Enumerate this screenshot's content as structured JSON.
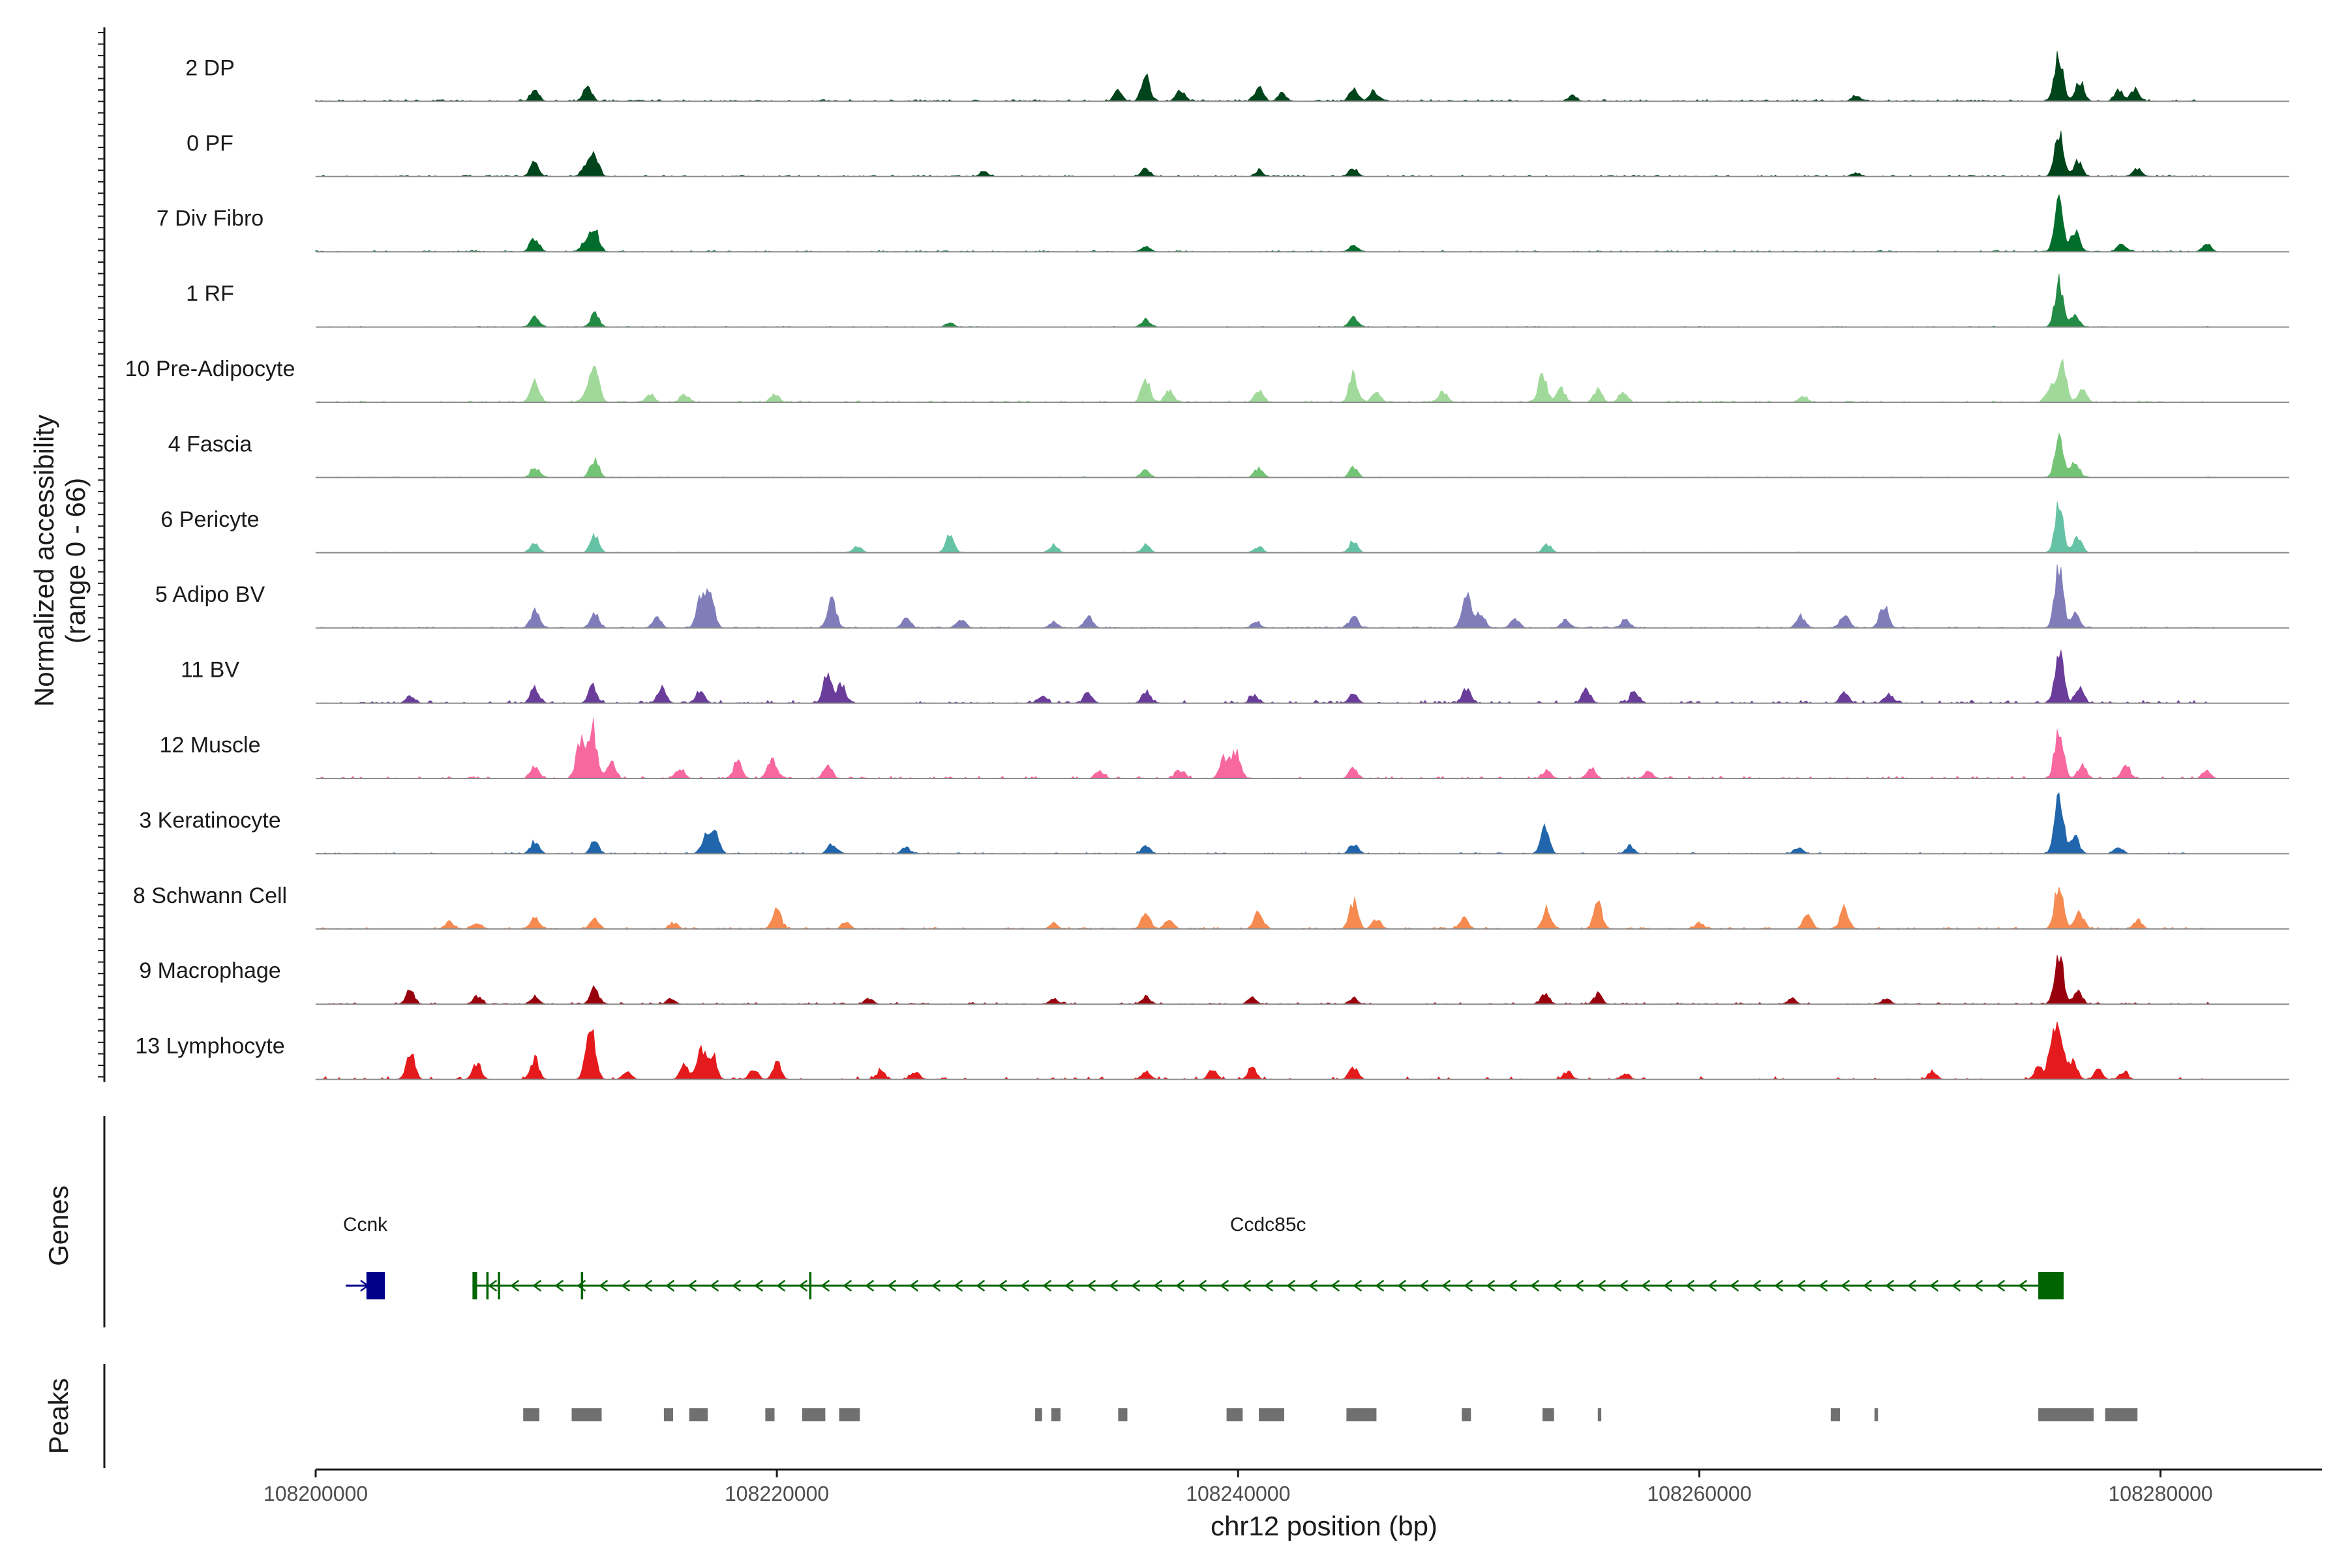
{
  "chart_data": {
    "type": "area",
    "chromosome": "chr12",
    "xlabel": "chr12 position (bp)",
    "ylabel": "Normalized accessibility",
    "ylabel_range": "(range 0 - 66)",
    "ylim": [
      0,
      66
    ],
    "xlim": [
      108200000,
      108287000
    ],
    "x_ticks": [
      108200000,
      108220000,
      108240000,
      108260000,
      108280000
    ],
    "x_tick_labels": [
      "108200000",
      "108220000",
      "108240000",
      "108260000",
      "108280000"
    ],
    "data_start": 108200000,
    "data_end": 108282500,
    "tracks": [
      {
        "name": "2 DP",
        "color": "#00441b",
        "noise": 2.0,
        "density": 0.9,
        "peaks": [
          [
            108209500,
            12
          ],
          [
            108211800,
            14
          ],
          [
            108234800,
            10
          ],
          [
            108236000,
            25
          ],
          [
            108237500,
            12
          ],
          [
            108240900,
            14
          ],
          [
            108241900,
            8
          ],
          [
            108245000,
            12
          ],
          [
            108245900,
            10
          ],
          [
            108254500,
            6
          ],
          [
            108266800,
            6
          ],
          [
            108275600,
            48
          ],
          [
            108276500,
            20
          ],
          [
            108278200,
            10
          ],
          [
            108278900,
            12
          ]
        ]
      },
      {
        "name": "0 PF",
        "color": "#00441b",
        "noise": 1.5,
        "density": 0.85,
        "peaks": [
          [
            108209500,
            14
          ],
          [
            108211700,
            10
          ],
          [
            108212100,
            22
          ],
          [
            108229000,
            5
          ],
          [
            108236000,
            8
          ],
          [
            108240900,
            6
          ],
          [
            108245000,
            8
          ],
          [
            108266800,
            4
          ],
          [
            108275600,
            48
          ],
          [
            108276400,
            16
          ],
          [
            108279000,
            8
          ]
        ]
      },
      {
        "name": "7 Div Fibro",
        "color": "#006d2c",
        "noise": 1.5,
        "density": 0.8,
        "peaks": [
          [
            108209500,
            14
          ],
          [
            108212100,
            22
          ],
          [
            108211700,
            10
          ],
          [
            108236000,
            6
          ],
          [
            108245000,
            6
          ],
          [
            108275600,
            52
          ],
          [
            108276300,
            22
          ],
          [
            108278300,
            8
          ],
          [
            108282000,
            8
          ]
        ]
      },
      {
        "name": "1 RF",
        "color": "#238b45",
        "noise": 0.9,
        "density": 0.7,
        "peaks": [
          [
            108209500,
            10
          ],
          [
            108212100,
            14
          ],
          [
            108227500,
            4
          ],
          [
            108236000,
            8
          ],
          [
            108245000,
            10
          ],
          [
            108275600,
            44
          ],
          [
            108276300,
            12
          ]
        ]
      },
      {
        "name": "10 Pre-Adipocyte",
        "color": "#a1d99b",
        "noise": 1.5,
        "density": 0.85,
        "peaks": [
          [
            108209500,
            22
          ],
          [
            108211700,
            8
          ],
          [
            108212100,
            36
          ],
          [
            108214500,
            8
          ],
          [
            108216000,
            8
          ],
          [
            108219900,
            8
          ],
          [
            108236000,
            22
          ],
          [
            108237000,
            12
          ],
          [
            108240900,
            12
          ],
          [
            108245000,
            26
          ],
          [
            108246000,
            10
          ],
          [
            108248900,
            10
          ],
          [
            108253200,
            28
          ],
          [
            108254000,
            14
          ],
          [
            108255600,
            12
          ],
          [
            108256700,
            10
          ],
          [
            108264500,
            6
          ],
          [
            108275200,
            14
          ],
          [
            108275700,
            44
          ],
          [
            108276600,
            12
          ]
        ]
      },
      {
        "name": "4 Fascia",
        "color": "#74c476",
        "noise": 1.0,
        "density": 0.75,
        "peaks": [
          [
            108209500,
            10
          ],
          [
            108212100,
            18
          ],
          [
            108236000,
            8
          ],
          [
            108240900,
            10
          ],
          [
            108245000,
            10
          ],
          [
            108275600,
            40
          ],
          [
            108276300,
            16
          ]
        ]
      },
      {
        "name": "6 Pericyte",
        "color": "#66c2a4",
        "noise": 0.9,
        "density": 0.7,
        "peaks": [
          [
            108209500,
            10
          ],
          [
            108212100,
            18
          ],
          [
            108223500,
            6
          ],
          [
            108227500,
            20
          ],
          [
            108232000,
            8
          ],
          [
            108236000,
            8
          ],
          [
            108240900,
            6
          ],
          [
            108245000,
            12
          ],
          [
            108253400,
            8
          ],
          [
            108275600,
            46
          ],
          [
            108276400,
            16
          ]
        ]
      },
      {
        "name": "5 Adipo BV",
        "color": "#807dba",
        "noise": 1.3,
        "density": 0.85,
        "peaks": [
          [
            108209500,
            18
          ],
          [
            108212100,
            14
          ],
          [
            108214800,
            10
          ],
          [
            108216700,
            28
          ],
          [
            108217100,
            34
          ],
          [
            108222400,
            28
          ],
          [
            108225600,
            10
          ],
          [
            108228000,
            8
          ],
          [
            108232000,
            6
          ],
          [
            108233500,
            12
          ],
          [
            108240800,
            6
          ],
          [
            108245000,
            12
          ],
          [
            108249900,
            34
          ],
          [
            108250500,
            16
          ],
          [
            108252000,
            10
          ],
          [
            108254200,
            8
          ],
          [
            108256800,
            8
          ],
          [
            108264400,
            12
          ],
          [
            108266300,
            14
          ],
          [
            108268000,
            24
          ],
          [
            108275600,
            56
          ],
          [
            108276300,
            16
          ]
        ]
      },
      {
        "name": "11 BV",
        "color": "#6a3d9a",
        "noise": 3.0,
        "density": 0.6,
        "peaks": [
          [
            108204100,
            8
          ],
          [
            108209500,
            14
          ],
          [
            108212000,
            16
          ],
          [
            108215000,
            16
          ],
          [
            108216700,
            12
          ],
          [
            108222200,
            30
          ],
          [
            108222800,
            18
          ],
          [
            108231500,
            8
          ],
          [
            108233500,
            10
          ],
          [
            108236000,
            12
          ],
          [
            108240700,
            8
          ],
          [
            108245000,
            10
          ],
          [
            108249900,
            14
          ],
          [
            108255100,
            14
          ],
          [
            108257200,
            12
          ],
          [
            108266300,
            12
          ],
          [
            108268200,
            10
          ],
          [
            108275600,
            52
          ],
          [
            108276500,
            14
          ]
        ]
      },
      {
        "name": "12 Muscle",
        "color": "#f768a1",
        "noise": 2.5,
        "density": 0.5,
        "peaks": [
          [
            108209500,
            12
          ],
          [
            108211500,
            40
          ],
          [
            108212000,
            52
          ],
          [
            108212800,
            16
          ],
          [
            108215800,
            10
          ],
          [
            108218300,
            16
          ],
          [
            108219800,
            20
          ],
          [
            108222200,
            14
          ],
          [
            108234000,
            8
          ],
          [
            108237500,
            8
          ],
          [
            108239400,
            20
          ],
          [
            108239900,
            28
          ],
          [
            108245000,
            10
          ],
          [
            108253400,
            8
          ],
          [
            108255300,
            12
          ],
          [
            108257800,
            8
          ],
          [
            108275600,
            50
          ],
          [
            108276600,
            14
          ],
          [
            108278500,
            12
          ],
          [
            108282000,
            8
          ]
        ]
      },
      {
        "name": "3 Keratinocyte",
        "color": "#2166ac",
        "noise": 1.3,
        "density": 0.85,
        "peaks": [
          [
            108209500,
            12
          ],
          [
            108212100,
            12
          ],
          [
            108216900,
            16
          ],
          [
            108217300,
            22
          ],
          [
            108222400,
            10
          ],
          [
            108225600,
            6
          ],
          [
            108236000,
            8
          ],
          [
            108245000,
            10
          ],
          [
            108253300,
            26
          ],
          [
            108257000,
            8
          ],
          [
            108264300,
            6
          ],
          [
            108275600,
            62
          ],
          [
            108276300,
            16
          ],
          [
            108278200,
            6
          ]
        ]
      },
      {
        "name": "8 Schwann Cell",
        "color": "#f58b51",
        "noise": 1.8,
        "density": 0.75,
        "peaks": [
          [
            108205800,
            8
          ],
          [
            108207000,
            6
          ],
          [
            108209500,
            12
          ],
          [
            108212100,
            12
          ],
          [
            108215500,
            6
          ],
          [
            108220000,
            20
          ],
          [
            108223000,
            6
          ],
          [
            108232000,
            6
          ],
          [
            108236000,
            16
          ],
          [
            108237000,
            10
          ],
          [
            108240900,
            18
          ],
          [
            108245000,
            28
          ],
          [
            108246000,
            10
          ],
          [
            108249800,
            12
          ],
          [
            108253400,
            20
          ],
          [
            108255600,
            26
          ],
          [
            108260000,
            6
          ],
          [
            108264700,
            14
          ],
          [
            108266300,
            20
          ],
          [
            108275600,
            46
          ],
          [
            108276500,
            16
          ],
          [
            108279000,
            8
          ]
        ]
      },
      {
        "name": "9 Macrophage",
        "color": "#99000d",
        "noise": 2.0,
        "density": 0.45,
        "peaks": [
          [
            108204100,
            14
          ],
          [
            108207000,
            8
          ],
          [
            108209500,
            8
          ],
          [
            108212100,
            16
          ],
          [
            108215400,
            6
          ],
          [
            108224000,
            6
          ],
          [
            108232000,
            6
          ],
          [
            108236000,
            8
          ],
          [
            108240600,
            6
          ],
          [
            108245000,
            6
          ],
          [
            108253300,
            10
          ],
          [
            108255600,
            10
          ],
          [
            108264000,
            6
          ],
          [
            108268100,
            6
          ],
          [
            108275600,
            54
          ],
          [
            108276400,
            14
          ]
        ]
      },
      {
        "name": "13 Lymphocyte",
        "color": "#e41a1c",
        "noise": 3.0,
        "density": 0.25,
        "peaks": [
          [
            108204100,
            28
          ],
          [
            108207000,
            16
          ],
          [
            108209500,
            20
          ],
          [
            108211800,
            20
          ],
          [
            108212000,
            36
          ],
          [
            108213500,
            8
          ],
          [
            108216000,
            14
          ],
          [
            108216700,
            28
          ],
          [
            108217200,
            26
          ],
          [
            108219000,
            10
          ],
          [
            108220000,
            16
          ],
          [
            108224500,
            8
          ],
          [
            108226000,
            8
          ],
          [
            108236000,
            8
          ],
          [
            108238900,
            10
          ],
          [
            108240600,
            12
          ],
          [
            108245000,
            12
          ],
          [
            108254300,
            8
          ],
          [
            108256800,
            6
          ],
          [
            108270100,
            8
          ],
          [
            108274700,
            12
          ],
          [
            108275300,
            30
          ],
          [
            108275600,
            50
          ],
          [
            108276200,
            18
          ],
          [
            108277300,
            10
          ],
          [
            108278400,
            8
          ]
        ]
      }
    ],
    "genes_title": "Genes",
    "genes": [
      {
        "name": "Ccnk",
        "start": 108201300,
        "end": 108203000,
        "strand": "+",
        "color": "#00008b",
        "exons": [
          [
            108202200,
            108203000
          ]
        ]
      },
      {
        "name": "Ccdc85c",
        "start": 108206800,
        "end": 108275800,
        "strand": "-",
        "color": "#006400",
        "exons": [
          [
            108206800,
            108207000
          ],
          [
            108207400,
            108207500
          ],
          [
            108207900,
            108208000
          ],
          [
            108211500,
            108211600
          ],
          [
            108221400,
            108221500
          ],
          [
            108274700,
            108275800
          ]
        ]
      }
    ],
    "peaks_title": "Peaks",
    "peaks_color": "#707070",
    "peak_regions": [
      [
        108209000,
        108209700
      ],
      [
        108211100,
        108212400
      ],
      [
        108215100,
        108215500
      ],
      [
        108216200,
        108217000
      ],
      [
        108219500,
        108219900
      ],
      [
        108221100,
        108222100
      ],
      [
        108222700,
        108223600
      ],
      [
        108231200,
        108231500
      ],
      [
        108231900,
        108232300
      ],
      [
        108234800,
        108235200
      ],
      [
        108239500,
        108240200
      ],
      [
        108240900,
        108242000
      ],
      [
        108244700,
        108246000
      ],
      [
        108249700,
        108250100
      ],
      [
        108253200,
        108253700
      ],
      [
        108255600,
        108255750
      ],
      [
        108265700,
        108266100
      ],
      [
        108267600,
        108267750
      ],
      [
        108274700,
        108277100
      ],
      [
        108277600,
        108279000
      ]
    ]
  }
}
